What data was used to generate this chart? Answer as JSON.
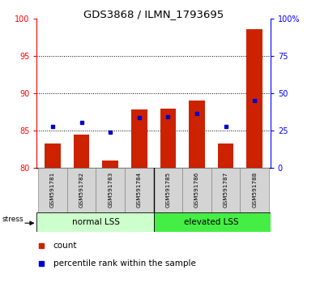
{
  "title": "GDS3868 / ILMN_1793695",
  "categories": [
    "GSM591781",
    "GSM591782",
    "GSM591783",
    "GSM591784",
    "GSM591785",
    "GSM591786",
    "GSM591787",
    "GSM591788"
  ],
  "bar_values": [
    83.3,
    84.5,
    81.0,
    87.8,
    87.9,
    89.0,
    83.3,
    98.6
  ],
  "blue_dot_values": [
    85.6,
    86.1,
    84.8,
    86.8,
    86.9,
    87.3,
    85.5,
    89.0
  ],
  "bar_color": "#cc2200",
  "dot_color": "#0000cc",
  "ylim_left": [
    80,
    100
  ],
  "ylim_right": [
    0,
    100
  ],
  "yticks_left": [
    80,
    85,
    90,
    95,
    100
  ],
  "yticks_right": [
    0,
    25,
    50,
    75,
    100
  ],
  "grid_lines": [
    85,
    90,
    95
  ],
  "group1_label": "normal LSS",
  "group2_label": "elevated LSS",
  "group1_color": "#ccffcc",
  "group2_color": "#44ee44",
  "stress_label": "stress",
  "legend_count": "count",
  "legend_percentile": "percentile rank within the sample",
  "bar_width": 0.55,
  "n_bars": 8,
  "divider": 3.5
}
